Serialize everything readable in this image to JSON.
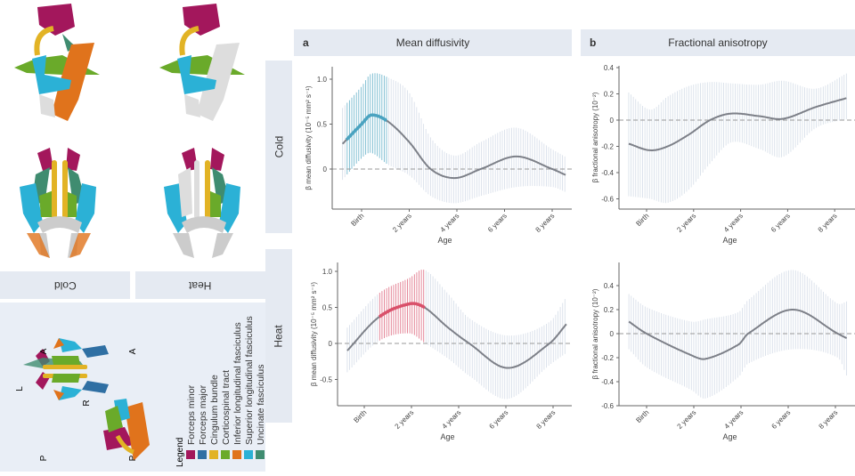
{
  "panels": {
    "a": {
      "letter": "a",
      "title": "Mean diffusivity"
    },
    "b": {
      "letter": "b",
      "title": "Fractional anisotropy"
    }
  },
  "rows": {
    "cold": "Cold",
    "heat": "Heat"
  },
  "brain_labels": {
    "cold": "Cold",
    "heat": "Heat",
    "L": "L",
    "R": "R",
    "A": "A",
    "P": "P"
  },
  "legend": {
    "title": "Legend",
    "items": [
      {
        "label": "Forceps minor",
        "color": "#a3175c"
      },
      {
        "label": "Forceps major",
        "color": "#2f6fa3"
      },
      {
        "label": "Cingulum bundle",
        "color": "#e2b325"
      },
      {
        "label": "Corticospinal tract",
        "color": "#6aaa2a"
      },
      {
        "label": "Inferior longitudinal fasciculus",
        "color": "#e0731c"
      },
      {
        "label": "Superior longitudinal fasciculus",
        "color": "#2bb1d6"
      },
      {
        "label": "Uncinate fasciculus",
        "color": "#3f8c70"
      }
    ]
  },
  "chart_data": [
    {
      "type": "line",
      "panel": "a",
      "row": "Cold",
      "ylabel": "β mean diffusivity (10⁻⁵ mm² s⁻¹)",
      "xlabel": "Age",
      "xticks": [
        {
          "value": 0,
          "label": "Birth"
        },
        {
          "value": 2,
          "label": "2 years"
        },
        {
          "value": 4,
          "label": "4 years"
        },
        {
          "value": 6,
          "label": "6 years"
        },
        {
          "value": 8,
          "label": "8 years"
        }
      ],
      "yticks": [
        {
          "value": 0,
          "label": "0"
        },
        {
          "value": 0.5,
          "label": "0.5"
        },
        {
          "value": 1.0,
          "label": "1.0"
        }
      ],
      "reference_line": 0,
      "significant_range": [
        -0.65,
        1.1
      ],
      "significant_color": "#4aa3c0",
      "points": [
        [
          -0.8,
          0.28,
          -0.12,
          0.68
        ],
        [
          0.0,
          0.5,
          0.12,
          0.92
        ],
        [
          0.4,
          0.6,
          0.18,
          1.06
        ],
        [
          1.1,
          0.53,
          0.05,
          1.02
        ],
        [
          2.0,
          0.3,
          -0.07,
          0.85
        ],
        [
          2.9,
          0.0,
          -0.3,
          0.35
        ],
        [
          3.9,
          -0.1,
          -0.38,
          0.15
        ],
        [
          5.0,
          0.0,
          -0.3,
          0.3
        ],
        [
          6.5,
          0.14,
          -0.2,
          0.46
        ],
        [
          8.0,
          0.0,
          -0.2,
          0.22
        ],
        [
          8.6,
          -0.07,
          -0.26,
          0.13
        ]
      ]
    },
    {
      "type": "line",
      "panel": "b",
      "row": "Cold",
      "ylabel": "β fractional anisotropy (10⁻²)",
      "xlabel": "Age",
      "xticks": [
        {
          "value": 0,
          "label": "Birth"
        },
        {
          "value": 2,
          "label": "2 years"
        },
        {
          "value": 4,
          "label": "4 years"
        },
        {
          "value": 6,
          "label": "6 years"
        },
        {
          "value": 8,
          "label": "8 years"
        }
      ],
      "yticks": [
        {
          "value": -0.6,
          "label": "-0.6"
        },
        {
          "value": -0.4,
          "label": "-0.4"
        },
        {
          "value": -0.2,
          "label": "-0.2"
        },
        {
          "value": 0,
          "label": "0"
        },
        {
          "value": 0.2,
          "label": "0.2"
        },
        {
          "value": 0.4,
          "label": "0.4"
        }
      ],
      "reference_line": 0,
      "significant_range": null,
      "points": [
        [
          -0.76,
          -0.18,
          -0.58,
          0.21
        ],
        [
          0.15,
          -0.23,
          -0.6,
          0.08
        ],
        [
          0.9,
          -0.2,
          -0.63,
          0.18
        ],
        [
          1.8,
          -0.11,
          -0.53,
          0.26
        ],
        [
          2.7,
          0.0,
          -0.33,
          0.29
        ],
        [
          3.6,
          0.05,
          -0.17,
          0.28
        ],
        [
          4.8,
          0.03,
          -0.22,
          0.27
        ],
        [
          5.8,
          0.01,
          -0.28,
          0.3
        ],
        [
          7.2,
          0.1,
          -0.06,
          0.24
        ],
        [
          8.55,
          0.17,
          0.01,
          0.36
        ]
      ]
    },
    {
      "type": "line",
      "panel": "a",
      "row": "Heat",
      "ylabel": "β mean diffusivity (10⁻⁵ mm² s⁻¹)",
      "xlabel": "Age",
      "xticks": [
        {
          "value": 0,
          "label": "Birth"
        },
        {
          "value": 2,
          "label": "2 years"
        },
        {
          "value": 4,
          "label": "4 years"
        },
        {
          "value": 6,
          "label": "6 years"
        },
        {
          "value": 8,
          "label": "8 years"
        }
      ],
      "yticks": [
        {
          "value": -0.5,
          "label": "-0.5"
        },
        {
          "value": 0,
          "label": "0"
        },
        {
          "value": 0.5,
          "label": "0.5"
        },
        {
          "value": 1.0,
          "label": "1.0"
        }
      ],
      "reference_line": 0,
      "significant_range": [
        0.6,
        2.6
      ],
      "significant_color": "#d9506a",
      "points": [
        [
          -0.72,
          -0.1,
          -0.4,
          0.22
        ],
        [
          0.6,
          0.36,
          0.03,
          0.69
        ],
        [
          1.92,
          0.55,
          0.14,
          0.91
        ],
        [
          2.55,
          0.5,
          0.01,
          1.02
        ],
        [
          3.55,
          0.22,
          -0.21,
          0.69
        ],
        [
          4.45,
          0.0,
          -0.45,
          0.35
        ],
        [
          6.08,
          -0.34,
          -0.77,
          0.11
        ],
        [
          7.85,
          0.0,
          -0.3,
          0.3
        ],
        [
          8.57,
          0.27,
          -0.13,
          0.65
        ]
      ]
    },
    {
      "type": "line",
      "panel": "b",
      "row": "Heat",
      "ylabel": "β fractional anisotropy (10⁻²)",
      "xlabel": "Age",
      "xticks": [
        {
          "value": 0,
          "label": "Birth"
        },
        {
          "value": 2,
          "label": "2 years"
        },
        {
          "value": 4,
          "label": "4 years"
        },
        {
          "value": 6,
          "label": "6 years"
        },
        {
          "value": 8,
          "label": "8 years"
        }
      ],
      "yticks": [
        {
          "value": -0.6,
          "label": "-0.6"
        },
        {
          "value": -0.4,
          "label": "-0.4"
        },
        {
          "value": -0.2,
          "label": "-0.2"
        },
        {
          "value": 0,
          "label": "0"
        },
        {
          "value": 0.2,
          "label": "0.2"
        },
        {
          "value": 0.4,
          "label": "0.4"
        }
      ],
      "reference_line": 0,
      "significant_range": null,
      "points": [
        [
          -0.75,
          0.1,
          -0.13,
          0.33
        ],
        [
          0.0,
          0.0,
          -0.28,
          0.22
        ],
        [
          1.9,
          -0.18,
          -0.47,
          0.1
        ],
        [
          2.5,
          -0.21,
          -0.54,
          0.12
        ],
        [
          3.9,
          -0.09,
          -0.36,
          0.18
        ],
        [
          4.3,
          0.0,
          -0.25,
          0.28
        ],
        [
          6.2,
          0.2,
          -0.13,
          0.53
        ],
        [
          8.1,
          0.0,
          -0.2,
          0.25
        ],
        [
          8.5,
          -0.04,
          -0.36,
          0.27
        ]
      ]
    }
  ]
}
